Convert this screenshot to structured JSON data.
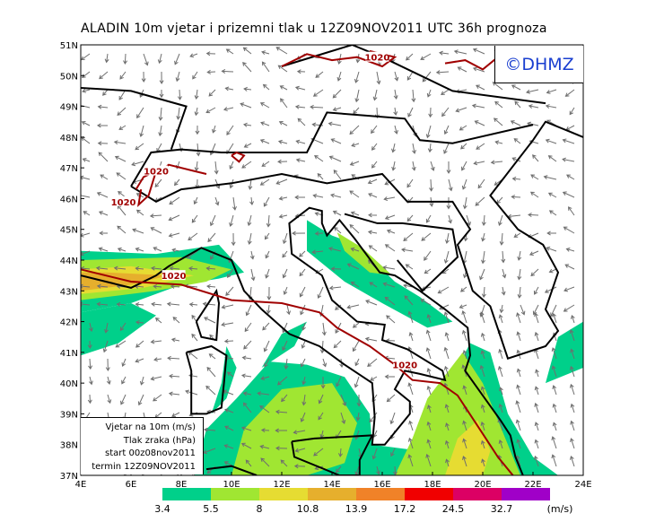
{
  "title": "ALADIN 10m vjetar i prizemni tlak u 12Z09NOV2011 UTC 36h prognoza",
  "logo": "©DHMZ",
  "info": {
    "line1": "Vjetar na 10m (m/s)",
    "line2": "Tlak zraka (hPa)",
    "line3": "start 00z08nov2011",
    "line4": "termin 12Z09NOV2011"
  },
  "axes": {
    "lat_labels": [
      "37N",
      "38N",
      "39N",
      "40N",
      "41N",
      "42N",
      "43N",
      "44N",
      "45N",
      "46N",
      "47N",
      "48N",
      "49N",
      "50N",
      "51N"
    ],
    "lon_labels": [
      "4E",
      "6E",
      "8E",
      "10E",
      "12E",
      "14E",
      "16E",
      "18E",
      "20E",
      "22E",
      "24E"
    ]
  },
  "isobar_labels": [
    "1020",
    "1020",
    "1020",
    "1020",
    "1020",
    "1020"
  ],
  "colorbar": {
    "colors": [
      "#00d08a",
      "#a0e632",
      "#e6dc32",
      "#e6af2d",
      "#f08228",
      "#f00000",
      "#dc0064",
      "#a000c8"
    ],
    "labels": [
      "3.4",
      "5.5",
      "8",
      "10.8",
      "13.9",
      "17.2",
      "24.5",
      "32.7"
    ],
    "unit": "(m/s)"
  },
  "colors": {
    "isobar": "#a00000",
    "arrow": "#6e6e6e",
    "coast": "#000000"
  }
}
